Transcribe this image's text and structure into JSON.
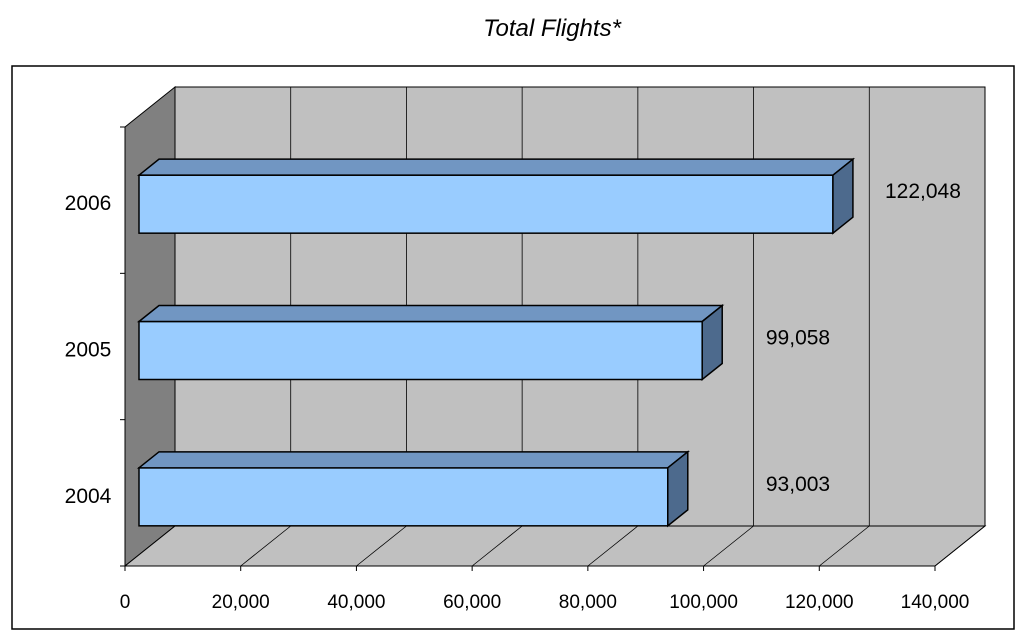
{
  "chart_data": {
    "type": "bar",
    "orientation": "horizontal",
    "title": "Total Flights*",
    "categories": [
      "2004",
      "2005",
      "2006"
    ],
    "values": [
      93003,
      99058,
      122048
    ],
    "value_labels": [
      "93,003",
      "99,058",
      "122,048"
    ],
    "xlabel": "",
    "ylabel": "",
    "xlim": [
      0,
      140000
    ],
    "x_ticks": [
      "0",
      "20,000",
      "40,000",
      "60,000",
      "80,000",
      "100,000",
      "120,000",
      "140,000"
    ],
    "grid": true,
    "style": "3d",
    "colors": {
      "bar_front": "#99ccff",
      "bar_top": "#7196c2",
      "bar_side": "#4d6a8d",
      "wall": "#c0c0c0",
      "floor": "#c0c0c0",
      "side_wall": "#808080",
      "gridline": "#000000",
      "border": "#000000"
    }
  }
}
